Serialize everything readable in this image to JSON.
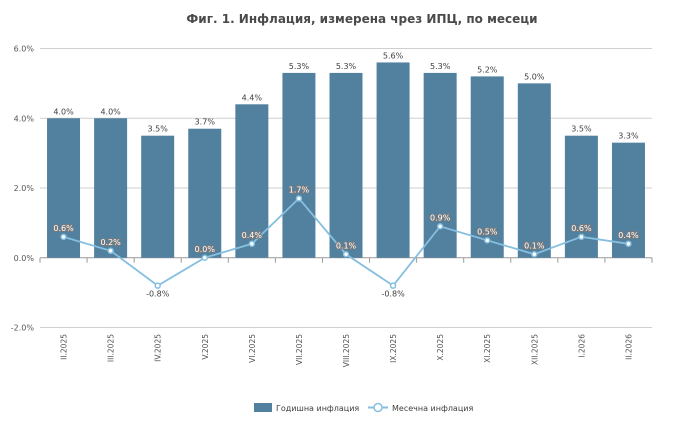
{
  "chart_data": {
    "type": "bar",
    "title": "Фиг. 1. Инфлация, измерена чрез ИПЦ, по месеци",
    "categories": [
      "II.2025",
      "III.2025",
      "IV.2025",
      "V.2025",
      "VI.2025",
      "VII.2025",
      "VIII.2025",
      "IX.2025",
      "X.2025",
      "XI.2025",
      "XII.2025",
      "I.2026",
      "II.2026"
    ],
    "series": [
      {
        "name": "Годишна инфлация",
        "type": "bar",
        "color": "#52809f",
        "values": [
          4.0,
          4.0,
          3.5,
          3.7,
          4.4,
          5.3,
          5.3,
          5.6,
          5.3,
          5.2,
          5.0,
          3.5,
          3.3
        ],
        "labels": [
          "4.0%",
          "4.0%",
          "3.5%",
          "3.7%",
          "4.4%",
          "5.3%",
          "5.3%",
          "5.6%",
          "5.3%",
          "5.2%",
          "5.0%",
          "3.5%",
          "3.3%"
        ]
      },
      {
        "name": "Месечна инфлация",
        "type": "line",
        "color": "#86bfe0",
        "values": [
          0.6,
          0.2,
          -0.8,
          0.0,
          0.4,
          1.7,
          0.1,
          -0.8,
          0.9,
          0.5,
          0.1,
          0.6,
          0.4
        ],
        "labels": [
          "0.6%",
          "0.2%",
          "-0.8%",
          "0.0%",
          "0.4%",
          "1.7%",
          "0.1%",
          "-0.8%",
          "0.9%",
          "0.5%",
          "0.1%",
          "0.6%",
          "0.4%"
        ]
      }
    ],
    "ylim": [
      -2.0,
      6.0
    ],
    "yticks": [
      "-2.0%",
      "0.0%",
      "2.0%",
      "4.0%",
      "6.0%"
    ],
    "ytick_values": [
      -2,
      0,
      2,
      4,
      6
    ],
    "grid": true,
    "legend": "bottom"
  }
}
